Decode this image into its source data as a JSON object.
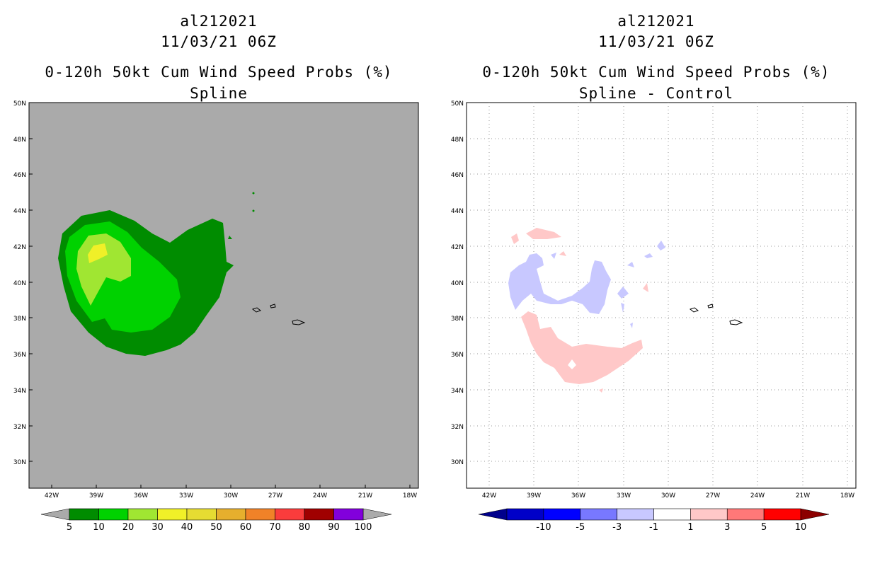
{
  "panels": [
    {
      "storm_id": "al212021",
      "datetime": "11/03/21 06Z",
      "product": "0-120h 50kt Cum Wind Speed Probs (%)",
      "subtitle": "Spline",
      "background_color": "#aaaaaa",
      "colorbar": {
        "labels": [
          "5",
          "10",
          "20",
          "30",
          "40",
          "50",
          "60",
          "70",
          "80",
          "90",
          "100"
        ],
        "colors": [
          "#008c00",
          "#00d200",
          "#a0e632",
          "#f0f028",
          "#e6dc32",
          "#e6af2d",
          "#f08228",
          "#fa3c3c",
          "#a00000",
          "#8200dc"
        ],
        "end_low_color": "#aaaaaa",
        "end_high_color": "#aaaaaa"
      }
    },
    {
      "storm_id": "al212021",
      "datetime": "11/03/21 06Z",
      "product": "0-120h 50kt Cum Wind Speed Probs (%)",
      "subtitle": "Spline - Control",
      "background_color": "#ffffff",
      "colorbar": {
        "labels": [
          "-10",
          "-5",
          "-3",
          "-1",
          "1",
          "3",
          "5",
          "10"
        ],
        "colors": [
          "#0000c8",
          "#0000ff",
          "#7878ff",
          "#c8c8ff",
          "#ffffff",
          "#ffc8c8",
          "#ff7878",
          "#ff0000"
        ],
        "end_low_color": "#00008c",
        "end_high_color": "#8c0000"
      }
    }
  ],
  "map": {
    "lat_labels": [
      "50N",
      "48N",
      "46N",
      "44N",
      "42N",
      "40N",
      "38N",
      "36N",
      "34N",
      "32N",
      "30N"
    ],
    "lon_labels": [
      "42W",
      "39W",
      "36W",
      "33W",
      "30W",
      "27W",
      "24W",
      "21W",
      "18W"
    ]
  }
}
